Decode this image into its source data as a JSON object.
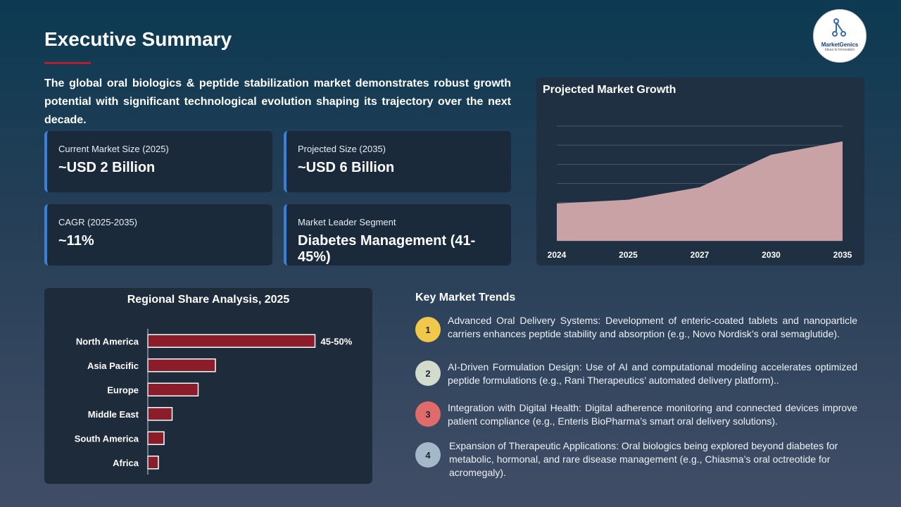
{
  "header": {
    "title": "Executive Summary",
    "logo": {
      "name": "MarketGenics",
      "tagline": "Ideas to Innovation"
    }
  },
  "intro": "The global oral biologics & peptide stabilization market demonstrates robust growth potential with significant technological evolution shaping its trajectory over the next decade.",
  "metrics": [
    {
      "label": "Current Market Size (2025)",
      "value": "~USD 2 Billion"
    },
    {
      "label": "Projected Size (2035)",
      "value": "~USD 6 Billion"
    },
    {
      "label": "CAGR (2025-2035)",
      "value": "~11%"
    },
    {
      "label": "Market Leader Segment",
      "value": "Diabetes Management (41-45%)"
    }
  ],
  "chart_data": [
    {
      "type": "area",
      "title": "Projected Market Growth",
      "categories": [
        "2024",
        "2025",
        "2027",
        "2030",
        "2035"
      ],
      "values": [
        1.95,
        2.15,
        2.8,
        4.5,
        5.2
      ],
      "color": "#c9a2a6",
      "ylim": [
        0,
        6
      ],
      "yticks": [
        0,
        1,
        2,
        3,
        4,
        5,
        6
      ],
      "grid": true
    },
    {
      "type": "bar",
      "orientation": "horizontal",
      "title": "Regional Share Analysis, 2025",
      "categories": [
        "North America",
        "Asia Pacific",
        "Europe",
        "Middle East",
        "South America",
        "Africa"
      ],
      "values": [
        47.5,
        19.2,
        14.3,
        6.9,
        4.6,
        3
      ],
      "value_labels": [
        "45-50%",
        null,
        null,
        null,
        null,
        null
      ],
      "color": "#8b1c2a",
      "xlim": [
        0,
        60
      ]
    }
  ],
  "trends": {
    "title": "Key Market Trends",
    "items": [
      {
        "number": "1",
        "text": "Advanced Oral Delivery Systems: Development of enteric-coated tablets and nanoparticle carriers enhances peptide stability and absorption (e.g., Novo Nordisk’s oral semaglutide).",
        "color": "#f2c84b"
      },
      {
        "number": "2",
        "text": "AI-Driven Formulation Design: Use of AI and computational modeling accelerates optimized peptide formulations (e.g., Rani Therapeutics’ automated delivery platform)..",
        "color": "#d3dbcd"
      },
      {
        "number": "3",
        "text": "Integration with Digital Health: Digital adherence monitoring and connected devices improve patient compliance (e.g., Enteris BioPharma’s smart oral delivery solutions).",
        "color": "#df6b6b"
      },
      {
        "number": "4",
        "text": "Expansion of Therapeutic Applications: Oral biologics being explored beyond diabetes for metabolic, hormonal, and rare disease management (e.g., Chiasma’s oral octreotide for acromegaly).",
        "color": "#a3b8c9"
      }
    ]
  }
}
